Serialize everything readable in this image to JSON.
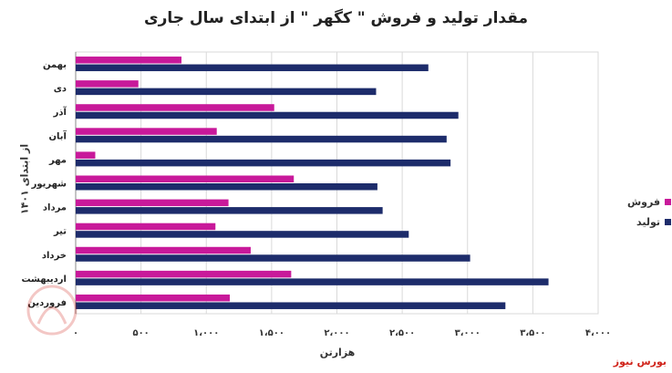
{
  "title": "مقدار تولید و فروش \" کگهر \" از ابتدای سال جاری",
  "source": "بورس نیوز",
  "colors": {
    "sales": "#c8199a",
    "production": "#1d2c6b",
    "grid": "#d9d9d9",
    "axis": "#8a8a8a"
  },
  "chart_data": {
    "type": "bar",
    "orientation": "horizontal",
    "ylabel": "از ابتدای ۱۴۰۱",
    "xlabel": "هزارتن",
    "xlim": [
      0,
      4000
    ],
    "grid": true,
    "legend_position": "right",
    "categories": [
      "بهمن",
      "دی",
      "آذر",
      "آبان",
      "مهر",
      "شهریور",
      "مرداد",
      "تیر",
      "خرداد",
      "اردیبهشت",
      "فروردین"
    ],
    "x_tick_labels": [
      "۰",
      "۵۰۰",
      "۱،۰۰۰",
      "۱،۵۰۰",
      "۲،۰۰۰",
      "۲،۵۰۰",
      "۳،۰۰۰",
      "۳،۵۰۰",
      "۴،۰۰۰"
    ],
    "x_tick_values": [
      0,
      500,
      1000,
      1500,
      2000,
      2500,
      3000,
      3500,
      4000
    ],
    "series": [
      {
        "name": "فروش",
        "values": [
          810,
          480,
          1520,
          1080,
          150,
          1670,
          1170,
          1070,
          1340,
          1650,
          1180
        ]
      },
      {
        "name": "تولید",
        "values": [
          2700,
          2300,
          2930,
          2840,
          2870,
          2310,
          2350,
          2550,
          3020,
          3620,
          3290
        ]
      }
    ]
  }
}
